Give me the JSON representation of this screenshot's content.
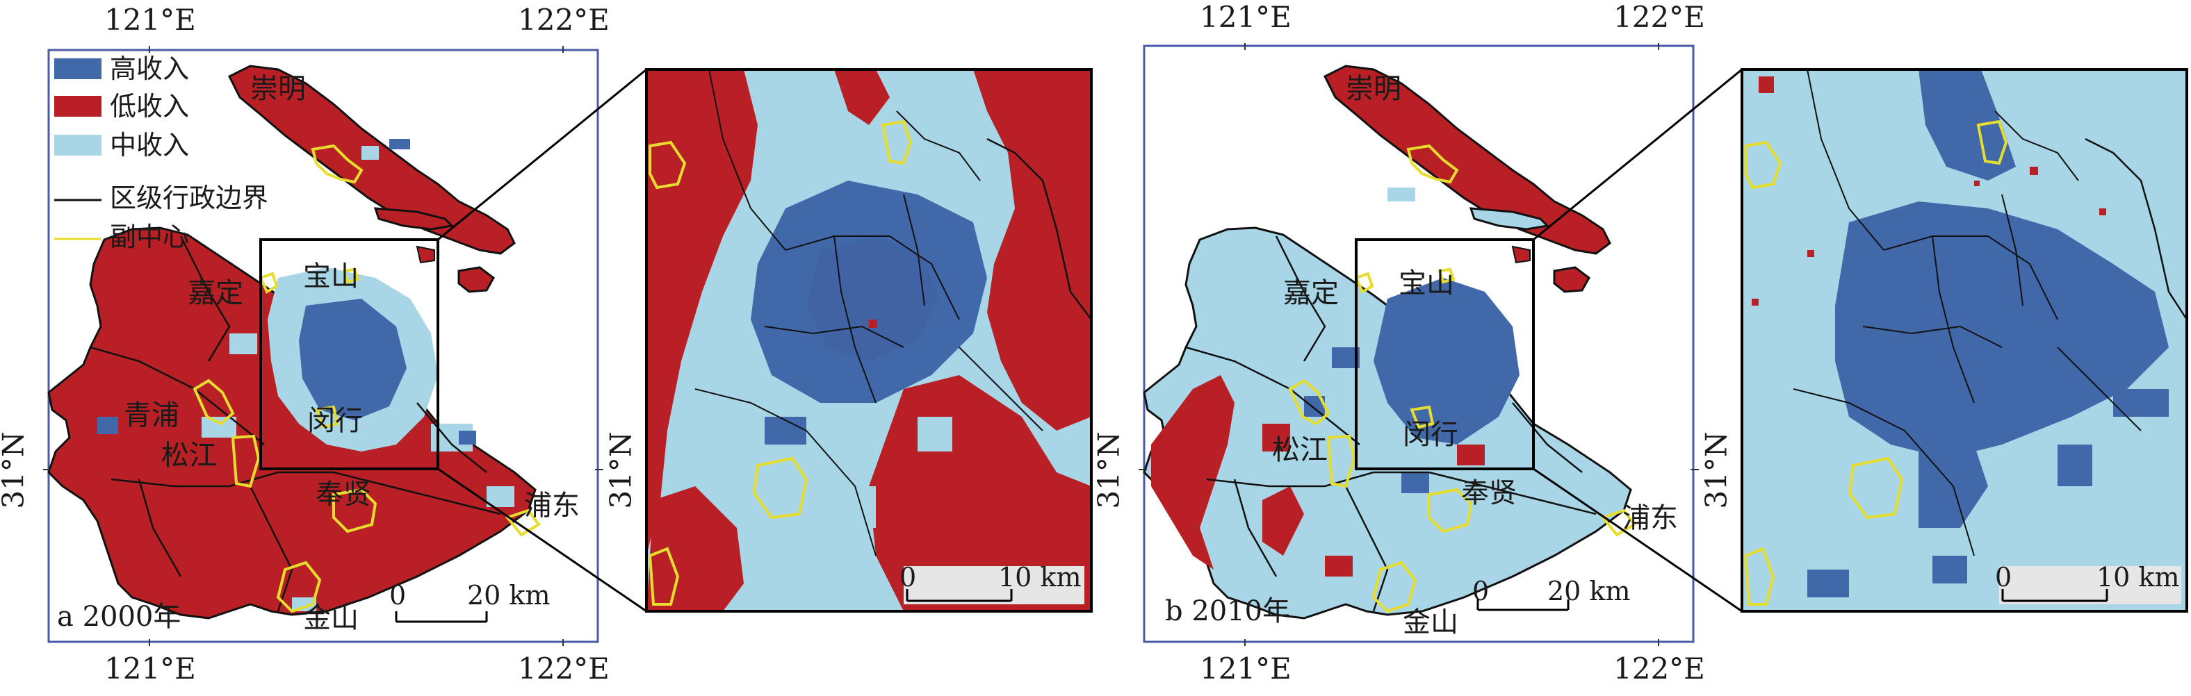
{
  "colors": {
    "high": "#4169aa",
    "low": "#b82025",
    "mid": "#a9d6e6",
    "boundary": "#111111",
    "subcenter": "#e6dd2e",
    "frame": "#4a5aa8"
  },
  "legend": {
    "high": "高收入",
    "low": "低收入",
    "mid": "中收入",
    "boundary": "区级行政边界",
    "subcenter": "副中心"
  },
  "ticks": {
    "lon_left": "121°E",
    "lon_right": "122°E",
    "lat": "31°N"
  },
  "panels": [
    {
      "label": "a 2000年",
      "places": {
        "chongming": "崇明",
        "jiading": "嘉定",
        "baoshan": "宝山",
        "qingpu": "青浦",
        "minhang": "闵行",
        "songjiang": "松江",
        "fengxian": "奉贤",
        "pudong": "浦东",
        "jinshan": "金山"
      },
      "scale": {
        "zero": "0",
        "dist": "20 km"
      },
      "inset_scale": {
        "zero": "0",
        "dist": "10 km"
      }
    },
    {
      "label": "b 2010年",
      "places": {
        "chongming": "崇明",
        "jiading": "嘉定",
        "baoshan": "宝山",
        "songjiang": "松江",
        "minhang": "闵行",
        "fengxian": "奉贤",
        "pudong": "浦东",
        "jinshan": "金山"
      },
      "scale": {
        "zero": "0",
        "dist": "20 km"
      },
      "inset_scale": {
        "zero": "0",
        "dist": "10 km"
      }
    }
  ]
}
